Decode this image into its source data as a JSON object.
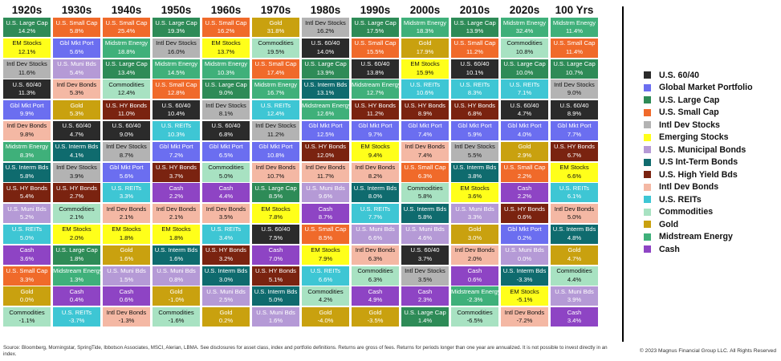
{
  "chart_data": {
    "type": "table",
    "columns": [
      {
        "header": "1920s",
        "cells": [
          {
            "asset": "U.S. Large Cap",
            "value": "14.2%"
          },
          {
            "asset": "EM Stocks",
            "value": "12.1%"
          },
          {
            "asset": "Intl Dev Stocks",
            "value": "11.6%"
          },
          {
            "asset": "U.S. 60/40",
            "value": "11.3%"
          },
          {
            "asset": "Gbl Mkt Port",
            "value": "9.9%"
          },
          {
            "asset": "Intl Dev Bonds",
            "value": "9.8%"
          },
          {
            "asset": "Midstrm Energy",
            "value": "8.3%"
          },
          {
            "asset": "U.S. Interm Bds",
            "value": "5.8%"
          },
          {
            "asset": "U.S. HY Bonds",
            "value": "5.4%"
          },
          {
            "asset": "U.S. Muni Bds",
            "value": "5.2%"
          },
          {
            "asset": "U.S. REITs",
            "value": "5.0%"
          },
          {
            "asset": "Cash",
            "value": "3.6%"
          },
          {
            "asset": "U.S. Small Cap",
            "value": "3.3%"
          },
          {
            "asset": "Gold",
            "value": "0.0%"
          },
          {
            "asset": "Commodities",
            "value": "-1.1%"
          }
        ]
      },
      {
        "header": "1930s",
        "cells": [
          {
            "asset": "U.S. Small Cap",
            "value": "5.8%"
          },
          {
            "asset": "Gbl Mkt Port",
            "value": "5.6%"
          },
          {
            "asset": "U.S. Muni Bds",
            "value": "5.4%"
          },
          {
            "asset": "Intl Dev Bonds",
            "value": "5.3%"
          },
          {
            "asset": "Gold",
            "value": "5.3%"
          },
          {
            "asset": "U.S. 60/40",
            "value": "4.7%"
          },
          {
            "asset": "U.S. Interm Bds",
            "value": "4.1%"
          },
          {
            "asset": "Intl Dev Stocks",
            "value": "3.9%"
          },
          {
            "asset": "U.S. HY Bonds",
            "value": "2.7%"
          },
          {
            "asset": "Commodities",
            "value": "2.1%"
          },
          {
            "asset": "EM Stocks",
            "value": "2.0%"
          },
          {
            "asset": "U.S. Large Cap",
            "value": "1.8%"
          },
          {
            "asset": "Midstream Energy",
            "value": "1.3%"
          },
          {
            "asset": "Cash",
            "value": "0.4%"
          },
          {
            "asset": "U.S. REITs",
            "value": "-3.7%"
          }
        ]
      },
      {
        "header": "1940s",
        "cells": [
          {
            "asset": "U.S. Small Cap",
            "value": "25.4%"
          },
          {
            "asset": "Midstrm Energy",
            "value": "18.8%"
          },
          {
            "asset": "U.S. Large Cap",
            "value": "13.4%"
          },
          {
            "asset": "Commodities",
            "value": "12.4%"
          },
          {
            "asset": "U.S. HY Bonds",
            "value": "11.0%"
          },
          {
            "asset": "U.S. 60/40",
            "value": "9.0%"
          },
          {
            "asset": "Intl Dev Stocks",
            "value": "8.7%"
          },
          {
            "asset": "Gbl Mkt Port",
            "value": "5.6%"
          },
          {
            "asset": "U.S. REITs",
            "value": "3.3%"
          },
          {
            "asset": "Intl Dev Bonds",
            "value": "2.1%"
          },
          {
            "asset": "EM Stocks",
            "value": "1.8%"
          },
          {
            "asset": "Gold",
            "value": "1.6%"
          },
          {
            "asset": "U.S. Muni Bds",
            "value": "1.5%"
          },
          {
            "asset": "Cash",
            "value": "0.6%"
          },
          {
            "asset": "Intl Dev Bonds",
            "value": "-1.3%"
          }
        ]
      },
      {
        "header": "1950s",
        "cells": [
          {
            "asset": "U.S. Large Cap",
            "value": "19.3%"
          },
          {
            "asset": "Intl Dev Stocks",
            "value": "16.0%"
          },
          {
            "asset": "Midstrm Energy",
            "value": "14.5%"
          },
          {
            "asset": "U.S. Small Cap",
            "value": "12.8%"
          },
          {
            "asset": "U.S. 60/40",
            "value": "10.4%"
          },
          {
            "asset": "U.S. REITs",
            "value": "10.3%"
          },
          {
            "asset": "Gbl Mkt Port",
            "value": "7.2%"
          },
          {
            "asset": "U.S. HY Bonds",
            "value": "3.7%"
          },
          {
            "asset": "Cash",
            "value": "2.2%"
          },
          {
            "asset": "Intl Dev Bonds",
            "value": "2.1%"
          },
          {
            "asset": "EM Stocks",
            "value": "1.8%"
          },
          {
            "asset": "U.S. Interm Bds",
            "value": "1.6%"
          },
          {
            "asset": "U.S. Muni Bds",
            "value": "0.8%"
          },
          {
            "asset": "Gold",
            "value": "-1.0%"
          },
          {
            "asset": "Commodities",
            "value": "-1.6%"
          }
        ]
      },
      {
        "header": "1960s",
        "cells": [
          {
            "asset": "U.S. Small Cap",
            "value": "16.2%"
          },
          {
            "asset": "EM Stocks",
            "value": "13.7%"
          },
          {
            "asset": "Midstrm Energy",
            "value": "10.3%"
          },
          {
            "asset": "U.S. Large Cap",
            "value": "9.0%"
          },
          {
            "asset": "Intl Dev Stocks",
            "value": "8.1%"
          },
          {
            "asset": "U.S. 60/40",
            "value": "6.8%"
          },
          {
            "asset": "Gbl Mkt Port",
            "value": "6.5%"
          },
          {
            "asset": "Commodities",
            "value": "5.0%"
          },
          {
            "asset": "Cash",
            "value": "4.4%"
          },
          {
            "asset": "Intl Dev Bonds",
            "value": "3.5%"
          },
          {
            "asset": "U.S. REITs",
            "value": "3.4%"
          },
          {
            "asset": "U.S. HY Bonds",
            "value": "3.2%"
          },
          {
            "asset": "U.S. Interm Bds",
            "value": "3.0%"
          },
          {
            "asset": "U.S. Muni Bds",
            "value": "2.5%"
          },
          {
            "asset": "Gold",
            "value": "0.2%"
          }
        ]
      },
      {
        "header": "1970s",
        "cells": [
          {
            "asset": "Gold",
            "value": "31.8%"
          },
          {
            "asset": "Commodities",
            "value": "19.5%"
          },
          {
            "asset": "U.S. Small Cap",
            "value": "17.4%"
          },
          {
            "asset": "Midstrm Energy",
            "value": "16.7%"
          },
          {
            "asset": "U.S. REITs",
            "value": "12.4%"
          },
          {
            "asset": "Intl Dev Stocks",
            "value": "11.2%"
          },
          {
            "asset": "Gbl Mkt Port",
            "value": "10.8%"
          },
          {
            "asset": "Intl Dev Bonds",
            "value": "10.7%"
          },
          {
            "asset": "U.S. Large Cap",
            "value": "8.5%"
          },
          {
            "asset": "EM Stocks",
            "value": "7.8%"
          },
          {
            "asset": "U.S. 60/40",
            "value": "7.5%"
          },
          {
            "asset": "Cash",
            "value": "7.0%"
          },
          {
            "asset": "U.S. HY Bonds",
            "value": "5.1%"
          },
          {
            "asset": "U.S. Interm Bds",
            "value": "5.0%"
          },
          {
            "asset": "U.S. Muni Bds",
            "value": "1.6%"
          }
        ]
      },
      {
        "header": "1980s",
        "cells": [
          {
            "asset": "Intl Dev Stocks",
            "value": "16.2%"
          },
          {
            "asset": "U.S. 60/40",
            "value": "14.0%"
          },
          {
            "asset": "U.S. Large Cap",
            "value": "13.9%"
          },
          {
            "asset": "U.S. Interm Bds",
            "value": "13.1%"
          },
          {
            "asset": "Midstream Energy",
            "value": "12.6%"
          },
          {
            "asset": "Gbl Mkt Port",
            "value": "12.5%"
          },
          {
            "asset": "U.S. HY Bonds",
            "value": "12.0%"
          },
          {
            "asset": "Intl Dev Bonds",
            "value": "11.7%"
          },
          {
            "asset": "U.S. Muni Bds",
            "value": "9.6%"
          },
          {
            "asset": "Cash",
            "value": "8.7%"
          },
          {
            "asset": "U.S. Small Cap",
            "value": "8.5%"
          },
          {
            "asset": "EM Stocks",
            "value": "7.9%"
          },
          {
            "asset": "U.S. REITs",
            "value": "6.6%"
          },
          {
            "asset": "Commodities",
            "value": "4.2%"
          },
          {
            "asset": "Gold",
            "value": "-4.0%"
          }
        ]
      },
      {
        "header": "1990s",
        "cells": [
          {
            "asset": "U.S. Large Cap",
            "value": "17.5%"
          },
          {
            "asset": "U.S. Small Cap",
            "value": "15.5%"
          },
          {
            "asset": "U.S. 60/40",
            "value": "13.8%"
          },
          {
            "asset": "Midstream Energy",
            "value": "12.7%"
          },
          {
            "asset": "U.S. HY Bonds",
            "value": "11.2%"
          },
          {
            "asset": "Gbl Mkt Port",
            "value": "9.7%"
          },
          {
            "asset": "EM Stocks",
            "value": "9.4%"
          },
          {
            "asset": "Intl Dev Bonds",
            "value": "8.2%"
          },
          {
            "asset": "U.S. Interm Bds",
            "value": "8.0%"
          },
          {
            "asset": "U.S. REITs",
            "value": "7.7%"
          },
          {
            "asset": "U.S. Muni Bds",
            "value": "6.6%"
          },
          {
            "asset": "Intl Dev Bonds",
            "value": "6.3%"
          },
          {
            "asset": "Commodities",
            "value": "6.3%"
          },
          {
            "asset": "Cash",
            "value": "4.9%"
          },
          {
            "asset": "Gold",
            "value": "-3.5%"
          }
        ]
      },
      {
        "header": "2000s",
        "cells": [
          {
            "asset": "Midstrm Energy",
            "value": "18.3%"
          },
          {
            "asset": "Gold",
            "value": "17.9%"
          },
          {
            "asset": "EM Stocks",
            "value": "15.9%"
          },
          {
            "asset": "U.S. REITs",
            "value": "10.6%"
          },
          {
            "asset": "U.S. HY Bonds",
            "value": "8.9%"
          },
          {
            "asset": "Gbl Mkt Port",
            "value": "7.4%"
          },
          {
            "asset": "Intl Dev Bonds",
            "value": "7.4%"
          },
          {
            "asset": "U.S. Small Cap",
            "value": "6.3%"
          },
          {
            "asset": "Commodities",
            "value": "5.8%"
          },
          {
            "asset": "U.S. Interm Bds",
            "value": "5.8%"
          },
          {
            "asset": "U.S. Muni Bds",
            "value": "4.6%"
          },
          {
            "asset": "U.S. 60/40",
            "value": "3.7%"
          },
          {
            "asset": "Intl Dev Stocks",
            "value": "3.5%"
          },
          {
            "asset": "Cash",
            "value": "2.3%"
          },
          {
            "asset": "U.S. Large Cap",
            "value": "1.4%"
          }
        ]
      },
      {
        "header": "2010s",
        "cells": [
          {
            "asset": "U.S. Large Cap",
            "value": "13.9%"
          },
          {
            "asset": "U.S. Small Cap",
            "value": "11.2%"
          },
          {
            "asset": "U.S. 60/40",
            "value": "10.1%"
          },
          {
            "asset": "U.S. REITs",
            "value": "8.3%"
          },
          {
            "asset": "U.S. HY Bonds",
            "value": "6.8%"
          },
          {
            "asset": "Gbl Mkt Port",
            "value": "5.9%"
          },
          {
            "asset": "Intl Dev Stocks",
            "value": "5.5%"
          },
          {
            "asset": "U.S. Interm Bds",
            "value": "3.8%"
          },
          {
            "asset": "EM Stocks",
            "value": "3.6%"
          },
          {
            "asset": "U.S. Muni Bds",
            "value": "3.3%"
          },
          {
            "asset": "Gold",
            "value": "3.0%"
          },
          {
            "asset": "Intl Dev Bonds",
            "value": "2.0%"
          },
          {
            "asset": "Cash",
            "value": "0.6%"
          },
          {
            "asset": "Midstream Energy",
            "value": "-2.3%"
          },
          {
            "asset": "Commodities",
            "value": "-6.5%"
          }
        ]
      },
      {
        "header": "2020s",
        "cells": [
          {
            "asset": "Midstrm Energy",
            "value": "32.4%"
          },
          {
            "asset": "Commodities",
            "value": "10.8%"
          },
          {
            "asset": "U.S. Large Cap",
            "value": "10.0%"
          },
          {
            "asset": "U.S. REITs",
            "value": "7.1%"
          },
          {
            "asset": "U.S. 60/40",
            "value": "4.7%"
          },
          {
            "asset": "Gbl Mkt Port",
            "value": "4.0%"
          },
          {
            "asset": "Gold",
            "value": "2.9%"
          },
          {
            "asset": "U.S. Small Cap",
            "value": "2.2%"
          },
          {
            "asset": "Cash",
            "value": "2.2%"
          },
          {
            "asset": "U.S. HY Bonds",
            "value": "0.6%"
          },
          {
            "asset": "Gbl Mkt Port",
            "value": "0.2%"
          },
          {
            "asset": "U.S. Muni Bds",
            "value": "0.0%"
          },
          {
            "asset": "U.S. Interm Bds",
            "value": "-3.3%"
          },
          {
            "asset": "EM Stocks",
            "value": "-5.1%"
          },
          {
            "asset": "Intl Dev Bonds",
            "value": "-7.2%"
          }
        ]
      },
      {
        "header": "100 Yrs",
        "cells": [
          {
            "asset": "Midstrm Energy",
            "value": "11.4%"
          },
          {
            "asset": "U.S. Small Cap",
            "value": "11.4%"
          },
          {
            "asset": "U.S. Large Cap",
            "value": "10.7%"
          },
          {
            "asset": "Intl Dev Stocks",
            "value": "9.0%"
          },
          {
            "asset": "U.S. 60/40",
            "value": "8.9%"
          },
          {
            "asset": "Gbl Mkt Port",
            "value": "7.7%"
          },
          {
            "asset": "U.S. HY Bonds",
            "value": "6.7%"
          },
          {
            "asset": "EM Stocks",
            "value": "6.6%"
          },
          {
            "asset": "U.S. REITs",
            "value": "6.1%"
          },
          {
            "asset": "Intl Dev Bonds",
            "value": "5.0%"
          },
          {
            "asset": "U.S. Interm Bds",
            "value": "4.8%"
          },
          {
            "asset": "Gold",
            "value": "4.7%"
          },
          {
            "asset": "Commodities",
            "value": "4.4%"
          },
          {
            "asset": "U.S. Muni Bds",
            "value": "3.9%"
          },
          {
            "asset": "Cash",
            "value": "3.4%"
          }
        ]
      }
    ],
    "legend": [
      {
        "label": "U.S. 60/40",
        "color": "#2b2b2b"
      },
      {
        "label": "Global Market Portfolio",
        "color": "#6b6ef0"
      },
      {
        "label": "U.S. Large Cap",
        "color": "#2e8b57"
      },
      {
        "label": "U.S. Small Cap",
        "color": "#f06a2a"
      },
      {
        "label": "Intl Dev Stocks",
        "color": "#b3b3b3"
      },
      {
        "label": "Emerging Stocks",
        "color": "#ffff1a"
      },
      {
        "label": "U.S. Municipal Bonds",
        "color": "#b59ad6"
      },
      {
        "label": "U.S Int-Term Bonds",
        "color": "#0f6b6e"
      },
      {
        "label": "U.S. High Yield Bds",
        "color": "#7a2310"
      },
      {
        "label": "Intl Dev Bonds",
        "color": "#f4b8a4"
      },
      {
        "label": "U.S. REITs",
        "color": "#3ec6d4"
      },
      {
        "label": "Commodities",
        "color": "#a8e2c2"
      },
      {
        "label": "Gold",
        "color": "#c9a10f"
      },
      {
        "label": "Midstream Energy",
        "color": "#3fb07a"
      },
      {
        "label": "Cash",
        "color": "#8e44c4"
      }
    ],
    "asset_colors": {
      "U.S. 60/40": "#2b2b2b",
      "Gbl Mkt Port": "#6b6ef0",
      "U.S. Large Cap": "#2e8b57",
      "U.S. Small Cap": "#f06a2a",
      "Intl Dev Stocks": "#b3b3b3",
      "EM Stocks": "#ffff1a",
      "U.S. Muni Bds": "#b59ad6",
      "U.S. Interm Bds": "#0f6b6e",
      "U.S. HY Bonds": "#7a2310",
      "Intl Dev Bonds": "#f4b8a4",
      "U.S. REITs": "#3ec6d4",
      "Commodities": "#a8e2c2",
      "Gold": "#c9a10f",
      "Midstrm Energy": "#3fb07a",
      "Midstream Energy": "#3fb07a",
      "Cash": "#8e44c4"
    },
    "light_text_assets": [
      "U.S. 60/40",
      "Gbl Mkt Port",
      "U.S. Large Cap",
      "U.S. Small Cap",
      "U.S. Muni Bds",
      "U.S. Interm Bds",
      "U.S. HY Bonds",
      "U.S. REITs",
      "Gold",
      "Midstrm Energy",
      "Midstream Energy",
      "Cash"
    ]
  },
  "footnote": "Source: Bloomberg, Morningstar, SpringTide, Ibbotson Associates, MSCI, Alerian, LBMA. See disclosures for asset class, index and portfolio definitions. Returns are gross of fees. Returns for periods longer than one year are annualized. It is not possible to invest directly in an index.",
  "copyright": "© 2023 Magnus Financial Group LLC. All Rights Reserved"
}
